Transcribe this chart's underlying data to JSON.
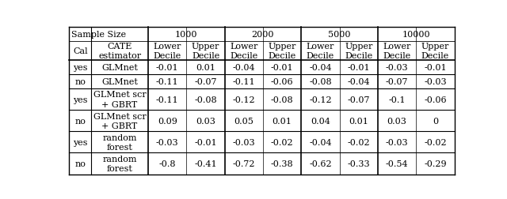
{
  "col_groups": [
    "1000",
    "2000",
    "5000",
    "10000"
  ],
  "rows": [
    [
      "yes",
      "GLMnet",
      "-0.01",
      "0.01",
      "-0.04",
      "-0.01",
      "-0.04",
      "-0.01",
      "-0.03",
      "-0.01"
    ],
    [
      "no",
      "GLMnet",
      "-0.11",
      "-0.07",
      "-0.11",
      "-0.06",
      "-0.08",
      "-0.04",
      "-0.07",
      "-0.03"
    ],
    [
      "yes",
      "GLMnet scr\n+ GBRT",
      "-0.11",
      "-0.08",
      "-0.12",
      "-0.08",
      "-0.12",
      "-0.07",
      "-0.1",
      "-0.06"
    ],
    [
      "no",
      "GLMnet scr\n+ GBRT",
      "0.09",
      "0.03",
      "0.05",
      "0.01",
      "0.04",
      "0.01",
      "0.03",
      "0"
    ],
    [
      "yes",
      "random\nforest",
      "-0.03",
      "-0.01",
      "-0.03",
      "-0.02",
      "-0.04",
      "-0.02",
      "-0.03",
      "-0.02"
    ],
    [
      "no",
      "random\nforest",
      "-0.8",
      "-0.41",
      "-0.72",
      "-0.38",
      "-0.62",
      "-0.33",
      "-0.54",
      "-0.29"
    ]
  ],
  "bg_color": "#ffffff",
  "line_color": "#000000",
  "text_color": "#000000",
  "font_size": 8.0
}
